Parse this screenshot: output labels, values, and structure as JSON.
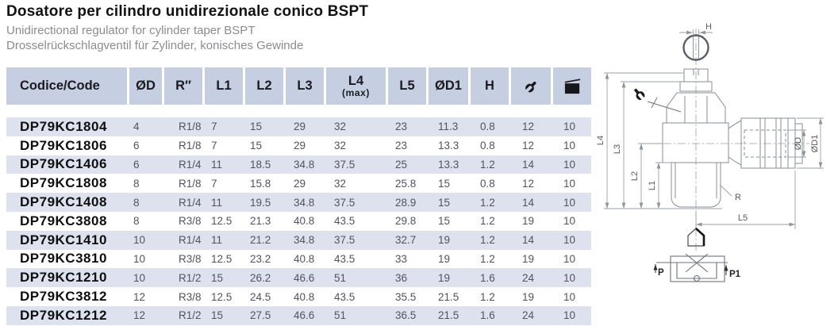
{
  "page": {
    "title": "Dosatore per cilindro unidirezionale conico BSPT",
    "subtitle_en": "Unidirectional regulator for cylinder taper BSPT",
    "subtitle_de": "Drosselrückschlagventil für Zylinder,  konisches Gewinde"
  },
  "colors": {
    "header_bg": "#c6cee1",
    "row_alt_bg": "#dee2ee",
    "title_text": "#121212",
    "subtitle_text": "#8b8c90",
    "cell_text": "#515460",
    "code_text": "#0f0f10",
    "drawing_line": "#878d95"
  },
  "table": {
    "columns": [
      {
        "key": "code",
        "label": "Codice/Code"
      },
      {
        "key": "d",
        "label": "ØD"
      },
      {
        "key": "r",
        "label": "R″"
      },
      {
        "key": "l1",
        "label": "L1"
      },
      {
        "key": "l2",
        "label": "L2"
      },
      {
        "key": "l3",
        "label": "L3"
      },
      {
        "key": "l4",
        "label": "L4",
        "sublabel": "(max)"
      },
      {
        "key": "l5",
        "label": "L5"
      },
      {
        "key": "d1",
        "label": "ØD1"
      },
      {
        "key": "h",
        "label": "H"
      },
      {
        "key": "wrench",
        "label": "",
        "icon": "wrench-icon"
      },
      {
        "key": "pack",
        "label": "",
        "icon": "package-icon"
      }
    ],
    "rows": [
      {
        "code": "DP79KC1804",
        "d": "4",
        "r": "R1/8",
        "l1": "7",
        "l2": "15",
        "l3": "29",
        "l4": "32",
        "l5": "23",
        "d1": "11.3",
        "h": "0.8",
        "wrench": "12",
        "pack": "10"
      },
      {
        "code": "DP79KC1806",
        "d": "6",
        "r": "R1/8",
        "l1": "7",
        "l2": "15",
        "l3": "29",
        "l4": "32",
        "l5": "23",
        "d1": "13.3",
        "h": "0.8",
        "wrench": "12",
        "pack": "10"
      },
      {
        "code": "DP79KC1406",
        "d": "6",
        "r": "R1/4",
        "l1": "11",
        "l2": "18.5",
        "l3": "34.8",
        "l4": "37.5",
        "l5": "25",
        "d1": "13.3",
        "h": "1.2",
        "wrench": "14",
        "pack": "10"
      },
      {
        "code": "DP79KC1808",
        "d": "8",
        "r": "R1/8",
        "l1": "7",
        "l2": "15.8",
        "l3": "29",
        "l4": "32",
        "l5": "25.8",
        "d1": "15",
        "h": "0.8",
        "wrench": "12",
        "pack": "10"
      },
      {
        "code": "DP79KC1408",
        "d": "8",
        "r": "R1/4",
        "l1": "11",
        "l2": "19.5",
        "l3": "34.8",
        "l4": "37.5",
        "l5": "28.9",
        "d1": "15",
        "h": "1.2",
        "wrench": "14",
        "pack": "10"
      },
      {
        "code": "DP79KC3808",
        "d": "8",
        "r": "R3/8",
        "l1": "12.5",
        "l2": "21.3",
        "l3": "40.8",
        "l4": "43.5",
        "l5": "29.8",
        "d1": "15",
        "h": "1.2",
        "wrench": "19",
        "pack": "10"
      },
      {
        "code": "DP79KC1410",
        "d": "10",
        "r": "R1/4",
        "l1": "11",
        "l2": "21.2",
        "l3": "34.8",
        "l4": "37.5",
        "l5": "32.7",
        "d1": "19",
        "h": "1.2",
        "wrench": "14",
        "pack": "10"
      },
      {
        "code": "DP79KC3810",
        "d": "10",
        "r": "R3/8",
        "l1": "12.5",
        "l2": "23.2",
        "l3": "40.8",
        "l4": "43.5",
        "l5": "33",
        "d1": "19",
        "h": "1.2",
        "wrench": "19",
        "pack": "10"
      },
      {
        "code": "DP79KC1210",
        "d": "10",
        "r": "R1/2",
        "l1": "15",
        "l2": "26.2",
        "l3": "46.6",
        "l4": "51",
        "l5": "36",
        "d1": "19",
        "h": "1.6",
        "wrench": "24",
        "pack": "10"
      },
      {
        "code": "DP79KC3812",
        "d": "12",
        "r": "R3/8",
        "l1": "12.5",
        "l2": "24.5",
        "l3": "40.8",
        "l4": "43.5",
        "l5": "35.5",
        "d1": "21.5",
        "h": "1.2",
        "wrench": "19",
        "pack": "10"
      },
      {
        "code": "DP79KC1212",
        "d": "12",
        "r": "R1/2",
        "l1": "15",
        "l2": "27.5",
        "l3": "46.6",
        "l4": "51",
        "l5": "36.5",
        "d1": "21.5",
        "h": "1.6",
        "wrench": "24",
        "pack": "10"
      }
    ]
  },
  "drawing": {
    "labels": {
      "h": "H",
      "l1": "L1",
      "l2": "L2",
      "l3": "L3",
      "l4": "L4",
      "l5": "L5",
      "r": "R",
      "od": "ØD",
      "od1": "ØD1",
      "p": "P",
      "p1": "P1"
    }
  }
}
